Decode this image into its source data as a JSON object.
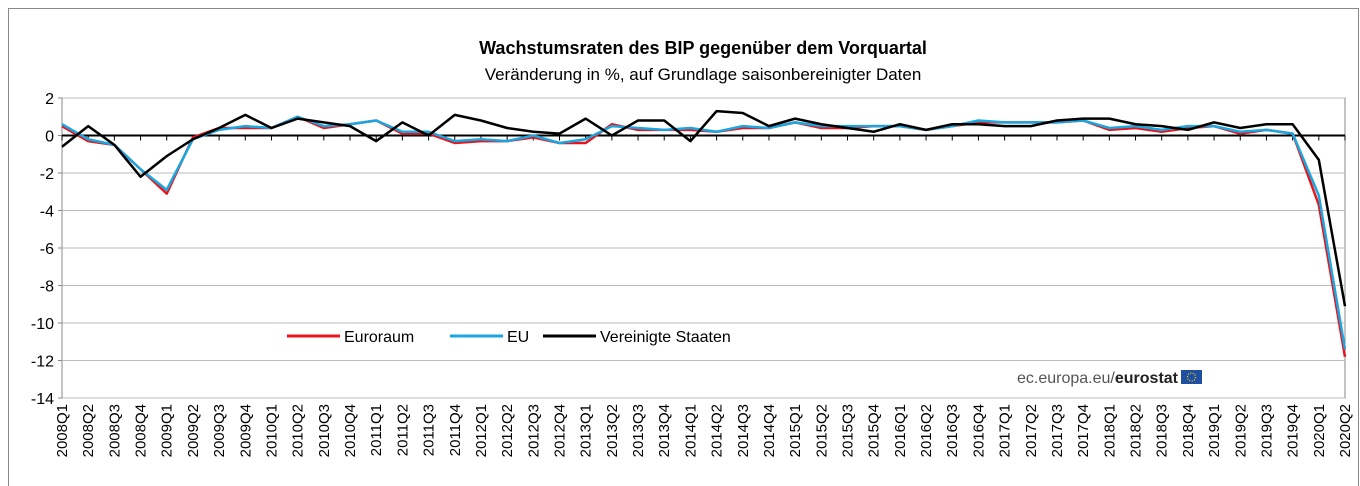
{
  "chart_data": {
    "type": "line",
    "title": "Wachstumsraten des BIP gegenüber dem Vorquartal",
    "subtitle": "Veränderung in %, auf Grundlage saisonbereinigter Daten",
    "source_prefix": "ec.europa.eu/",
    "source_brand": "eurostat",
    "categories": [
      "2008Q1",
      "2008Q2",
      "2008Q3",
      "2008Q4",
      "2009Q1",
      "2009Q2",
      "2009Q3",
      "2009Q4",
      "2010Q1",
      "2010Q2",
      "2010Q3",
      "2010Q4",
      "2011Q1",
      "2011Q2",
      "2011Q3",
      "2011Q4",
      "2012Q1",
      "2012Q2",
      "2012Q3",
      "2012Q4",
      "2013Q1",
      "2013Q2",
      "2013Q3",
      "2013Q4",
      "2014Q1",
      "2014Q2",
      "2014Q3",
      "2014Q4",
      "2015Q1",
      "2015Q2",
      "2015Q3",
      "2015Q4",
      "2016Q1",
      "2016Q2",
      "2016Q3",
      "2016Q4",
      "2017Q1",
      "2017Q2",
      "2017Q3",
      "2017Q4",
      "2018Q1",
      "2018Q2",
      "2018Q3",
      "2018Q4",
      "2019Q1",
      "2019Q2",
      "2019Q3",
      "2019Q4",
      "2020Q1",
      "2020Q2"
    ],
    "series": [
      {
        "name": "Euroraum",
        "color": "#e8141c",
        "values": [
          0.5,
          -0.3,
          -0.5,
          -1.8,
          -3.1,
          -0.1,
          0.4,
          0.4,
          0.4,
          1.0,
          0.4,
          0.6,
          0.8,
          0.1,
          0.1,
          -0.4,
          -0.3,
          -0.3,
          -0.1,
          -0.4,
          -0.4,
          0.6,
          0.3,
          0.3,
          0.3,
          0.2,
          0.4,
          0.4,
          0.7,
          0.4,
          0.4,
          0.5,
          0.5,
          0.3,
          0.5,
          0.7,
          0.7,
          0.7,
          0.7,
          0.8,
          0.3,
          0.4,
          0.2,
          0.4,
          0.5,
          0.1,
          0.3,
          0.1,
          -3.7,
          -11.8
        ]
      },
      {
        "name": "EU",
        "color": "#1aa7e0",
        "values": [
          0.6,
          -0.2,
          -0.5,
          -1.8,
          -2.9,
          -0.2,
          0.3,
          0.5,
          0.4,
          1.0,
          0.5,
          0.6,
          0.8,
          0.2,
          0.2,
          -0.3,
          -0.2,
          -0.3,
          0.0,
          -0.4,
          -0.2,
          0.5,
          0.4,
          0.3,
          0.4,
          0.2,
          0.5,
          0.4,
          0.7,
          0.5,
          0.5,
          0.5,
          0.5,
          0.3,
          0.5,
          0.8,
          0.7,
          0.7,
          0.7,
          0.8,
          0.4,
          0.5,
          0.3,
          0.5,
          0.5,
          0.2,
          0.3,
          0.1,
          -3.2,
          -11.4
        ]
      },
      {
        "name": "Vereinigte Staaten",
        "color": "#000000",
        "values": [
          -0.6,
          0.5,
          -0.5,
          -2.2,
          -1.1,
          -0.2,
          0.4,
          1.1,
          0.4,
          0.9,
          0.7,
          0.5,
          -0.3,
          0.7,
          0.0,
          1.1,
          0.8,
          0.4,
          0.2,
          0.1,
          0.9,
          0.0,
          0.8,
          0.8,
          -0.3,
          1.3,
          1.2,
          0.5,
          0.9,
          0.6,
          0.4,
          0.2,
          0.6,
          0.3,
          0.6,
          0.6,
          0.5,
          0.5,
          0.8,
          0.9,
          0.9,
          0.6,
          0.5,
          0.3,
          0.7,
          0.4,
          0.6,
          0.6,
          -1.3,
          -9.1
        ]
      }
    ],
    "ylim": [
      -14,
      2
    ],
    "yticks": [
      2,
      0,
      -2,
      -4,
      -6,
      -8,
      -10,
      -12,
      -14
    ],
    "grid": true
  }
}
